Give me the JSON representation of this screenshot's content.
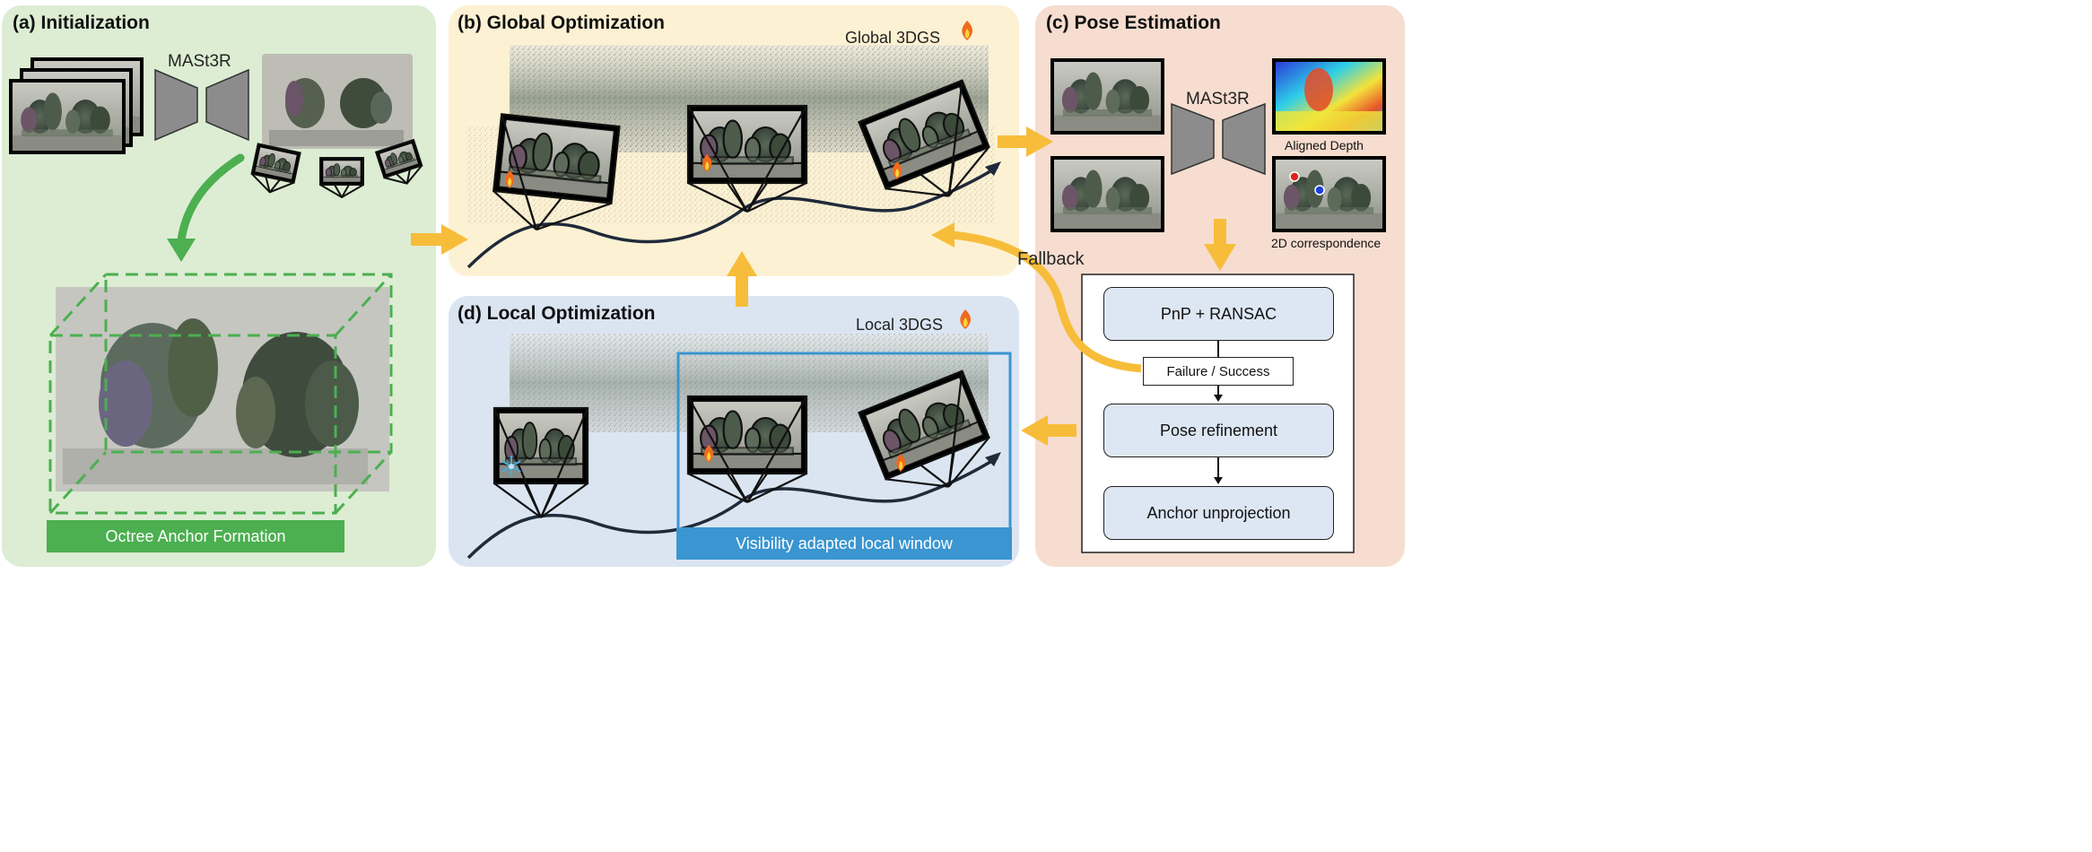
{
  "panels": {
    "initialization": {
      "title": "(a) Initialization",
      "model_label": "MASt3R",
      "banner": "Octree Anchor Formation"
    },
    "global": {
      "title": "(b) Global Optimization",
      "model_label": "Global 3DGS",
      "fire_icon": "fire-icon"
    },
    "pose": {
      "title": "(c) Pose Estimation",
      "model_label": "MASt3R",
      "depth_label": "Aligned Depth",
      "corr_label": "2D correspondence",
      "steps": {
        "pnp": "PnP + RANSAC",
        "status": "Failure / Success",
        "refine": "Pose refinement",
        "anchor": "Anchor unprojection"
      }
    },
    "local": {
      "title": "(d) Local Optimization",
      "model_label": "Local 3DGS",
      "banner": "Visibility adapted local window",
      "frozen_icon": "snowflake-icon"
    }
  },
  "fallback_label": "Fallback",
  "colors": {
    "init_bg": "#dcedd3",
    "global_bg": "#fcf1d3",
    "pose_bg": "#f6ddd0",
    "local_bg": "#dbe5f2",
    "green": "#4caf50",
    "arrow_yellow": "#f7bd3a",
    "local_window": "#3a95d0"
  }
}
